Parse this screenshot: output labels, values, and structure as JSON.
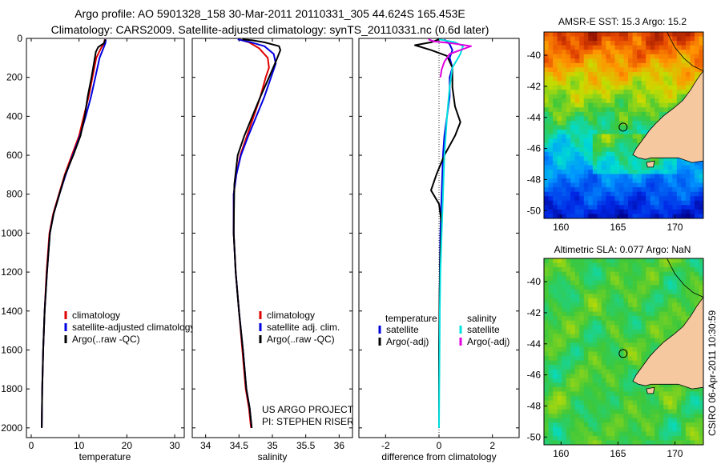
{
  "header": {
    "line1": "Argo profile: AO 5901328_158 30-Mar-2011 20110331_305 44.624S 165.453E",
    "line2": "Climatology: CARS2009. Satellite-adjusted climatology: synTS_20110331.nc (0.6d later)"
  },
  "side_text": "CSIRO 06-Apr-2011 10:30:59",
  "project_text": [
    "US ARGO PROJECT",
    "PI: STEPHEN RISER"
  ],
  "colors": {
    "climatology": "#e00000",
    "satellite": "#0000e0",
    "argo": "#000000",
    "satellite_sal": "#00e0e0",
    "argo_sal": "#e000e0",
    "land": "#f5c8a0"
  },
  "chart_data": [
    {
      "type": "line",
      "xlabel": "temperature",
      "ylim": [
        2050,
        0
      ],
      "xlim": [
        -1,
        32
      ],
      "xticks": [
        0,
        10,
        20,
        30
      ],
      "yticks": [
        0,
        200,
        400,
        600,
        800,
        1000,
        1200,
        1400,
        1600,
        1800,
        2000
      ],
      "legend": [
        "climatology",
        "satellite-adjusted climatology",
        "Argo(..raw -QC)"
      ],
      "series": [
        {
          "name": "climatology",
          "color": "#e00000",
          "x": [
            15.4,
            15.2,
            14.6,
            13.6,
            12.8,
            12.0,
            11.0,
            10.0,
            8.5,
            7.0,
            5.8,
            4.6,
            3.8,
            3.2,
            2.8,
            2.5,
            2.3,
            2.2
          ],
          "y": [
            5,
            25,
            50,
            100,
            200,
            300,
            400,
            500,
            600,
            700,
            800,
            900,
            1000,
            1200,
            1400,
            1600,
            1800,
            2000
          ]
        },
        {
          "name": "satellite-adjusted climatology",
          "color": "#0000e0",
          "x": [
            15.6,
            15.5,
            15.1,
            14.3,
            13.4,
            12.5,
            11.4,
            10.2,
            8.7,
            7.2,
            5.9,
            4.7,
            3.9,
            3.3,
            2.8,
            2.5,
            2.3,
            2.2
          ],
          "y": [
            5,
            25,
            50,
            100,
            200,
            300,
            400,
            500,
            600,
            700,
            800,
            900,
            1000,
            1200,
            1400,
            1600,
            1800,
            2000
          ]
        },
        {
          "name": "Argo(..raw -QC)",
          "color": "#000000",
          "x": [
            15.5,
            15.2,
            14.0,
            13.5,
            13.3,
            12.6,
            11.8,
            11.2,
            10.3,
            8.8,
            7.1,
            5.9,
            4.7,
            3.9,
            3.3,
            2.8,
            2.5,
            2.3,
            2.2
          ],
          "y": [
            5,
            25,
            45,
            70,
            100,
            200,
            300,
            400,
            500,
            600,
            700,
            800,
            900,
            1000,
            1200,
            1400,
            1600,
            1800,
            2000
          ]
        }
      ]
    },
    {
      "type": "line",
      "xlabel": "salinity",
      "ylim": [
        2050,
        0
      ],
      "xlim": [
        33.8,
        36.2
      ],
      "xticks": [
        34,
        34.5,
        35,
        35.5,
        36
      ],
      "yticks": [
        0,
        200,
        400,
        600,
        800,
        1000,
        1200,
        1400,
        1600,
        1800,
        2000
      ],
      "legend": [
        "climatology",
        "satellite adj. clim.",
        "Argo(..raw -QC)"
      ],
      "series": [
        {
          "name": "climatology",
          "color": "#e00000",
          "x": [
            34.5,
            34.65,
            34.8,
            34.93,
            34.95,
            34.9,
            34.82,
            34.72,
            34.62,
            34.52,
            34.46,
            34.42,
            34.42,
            34.45,
            34.5,
            34.55,
            34.6,
            34.65,
            34.68
          ],
          "y": [
            5,
            20,
            50,
            100,
            150,
            200,
            300,
            400,
            500,
            600,
            700,
            800,
            1000,
            1200,
            1400,
            1600,
            1800,
            1900,
            2000
          ]
        },
        {
          "name": "satellite adj. clim.",
          "color": "#0000e0",
          "x": [
            34.48,
            34.68,
            34.88,
            35.02,
            35.05,
            34.98,
            34.88,
            34.76,
            34.64,
            34.53,
            34.46,
            34.42,
            34.42,
            34.45,
            34.5,
            34.56,
            34.61,
            34.66,
            34.69
          ],
          "y": [
            5,
            20,
            40,
            80,
            130,
            200,
            300,
            400,
            500,
            600,
            700,
            800,
            1000,
            1200,
            1400,
            1600,
            1800,
            1900,
            2000
          ]
        },
        {
          "name": "Argo(..raw -QC)",
          "color": "#000000",
          "x": [
            34.55,
            34.7,
            34.88,
            35.1,
            35.12,
            35.05,
            34.95,
            34.82,
            34.7,
            34.58,
            34.48,
            34.43,
            34.42,
            34.45,
            34.5,
            34.56,
            34.61,
            34.66,
            34.69
          ],
          "y": [
            5,
            10,
            20,
            40,
            60,
            120,
            200,
            300,
            400,
            500,
            600,
            750,
            1000,
            1200,
            1400,
            1600,
            1800,
            1900,
            2000
          ]
        }
      ]
    },
    {
      "type": "line",
      "xlabel": "difference from climatology",
      "ylim": [
        2050,
        0
      ],
      "xlim": [
        -3,
        3
      ],
      "xticks": [
        -2,
        0,
        2
      ],
      "yticks": [
        0,
        200,
        400,
        600,
        800,
        1000,
        1200,
        1400,
        1600,
        1800,
        2000
      ],
      "legend_title_t": "temperature",
      "legend_title_s": "salinity",
      "legend_t": [
        "satellite",
        "Argo(-adj)"
      ],
      "legend_s": [
        "satellite",
        "Argo(-adj)"
      ],
      "series": [
        {
          "name": "temperature satellite",
          "color": "#0000e0",
          "x": [
            0.2,
            0.4,
            0.5,
            0.4,
            0.5,
            0.4,
            0.4,
            0.3,
            0.2,
            0.15,
            0.1,
            0.05,
            0.03,
            0.02,
            0.01,
            0.0,
            0.0
          ],
          "y": [
            5,
            30,
            60,
            100,
            150,
            200,
            300,
            400,
            500,
            600,
            800,
            1000,
            1200,
            1400,
            1600,
            1800,
            2000
          ]
        },
        {
          "name": "temperature Argo(-adj)",
          "color": "#000000",
          "x": [
            0.0,
            -0.3,
            -0.9,
            -0.3,
            0.3,
            0.5,
            0.5,
            0.6,
            0.8,
            0.6,
            0.2,
            -0.1,
            -0.3,
            0.0,
            0.1,
            0.05,
            0.02,
            0.0,
            0.0,
            0.0
          ],
          "y": [
            5,
            20,
            35,
            60,
            90,
            150,
            250,
            350,
            430,
            500,
            600,
            700,
            780,
            850,
            950,
            1100,
            1300,
            1600,
            1800,
            2000
          ]
        },
        {
          "name": "salinity satellite",
          "color": "#00e0e0",
          "x": [
            0.0,
            0.6,
            0.9,
            0.8,
            0.5,
            0.4,
            0.3,
            0.2,
            0.15,
            0.1,
            0.05,
            0.03,
            0.02,
            0.01,
            0.0
          ],
          "y": [
            5,
            20,
            40,
            80,
            150,
            250,
            400,
            600,
            800,
            1000,
            1200,
            1400,
            1600,
            1800,
            2000
          ]
        },
        {
          "name": "salinity Argo(-adj)",
          "color": "#e000e0",
          "x": [
            -0.4,
            -0.2,
            0.5,
            1.2,
            0.8,
            0.4,
            0.2,
            0.1,
            0.05
          ],
          "y": [
            5,
            15,
            25,
            40,
            60,
            80,
            120,
            160,
            200
          ]
        }
      ]
    },
    {
      "type": "heatmap",
      "title": "AMSR-E SST: 15.3 Argo: 15.2",
      "xlim": [
        158.5,
        172.5
      ],
      "ylim": [
        -50.5,
        -38.5
      ],
      "xticks": [
        160,
        165,
        170
      ],
      "yticks": [
        -40,
        -42,
        -44,
        -46,
        -48,
        -50
      ],
      "float_position": [
        165.453,
        -44.624
      ]
    },
    {
      "type": "heatmap",
      "title": "Altimetric SLA: 0.077 Argo: NaN",
      "xlim": [
        158.5,
        172.5
      ],
      "ylim": [
        -50.5,
        -38.5
      ],
      "xticks": [
        160,
        165,
        170
      ],
      "yticks": [
        -40,
        -42,
        -44,
        -46,
        -48,
        -50
      ],
      "float_position": [
        165.453,
        -44.624
      ]
    }
  ]
}
